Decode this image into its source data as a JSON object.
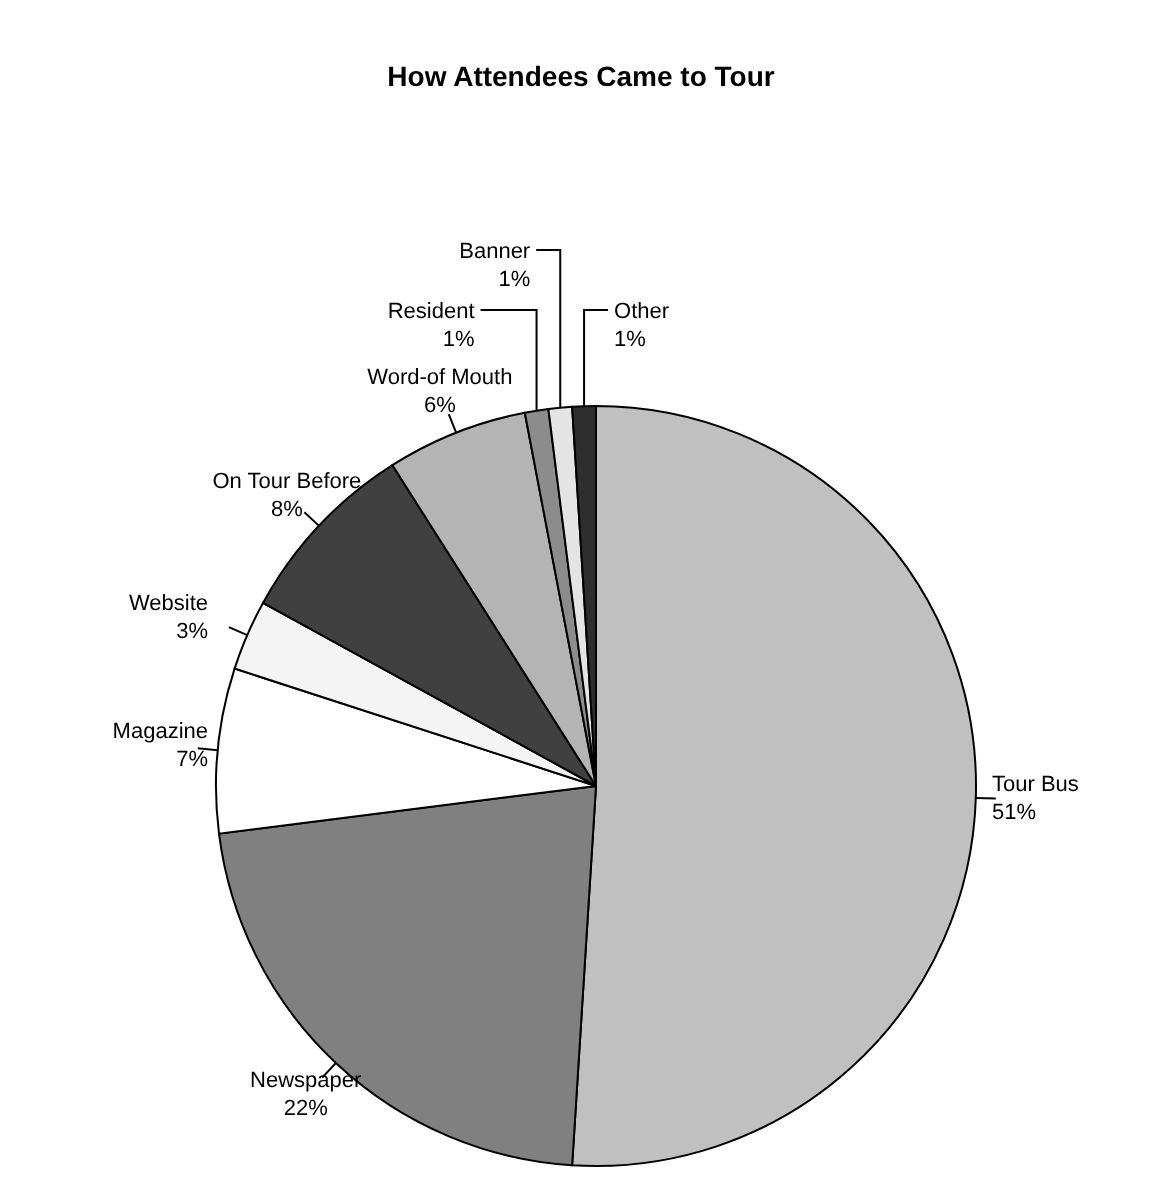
{
  "chart_data": {
    "type": "pie",
    "title": "How Attendees Came to Tour",
    "categories": [
      "Tour Bus",
      "Newspaper",
      "Magazine",
      "Website",
      "On Tour Before",
      "Word-of Mouth",
      "Resident",
      "Banner",
      "Other"
    ],
    "values": [
      51,
      22,
      7,
      3,
      8,
      6,
      1,
      1,
      1
    ],
    "colors": [
      "#c0c0c0",
      "#808080",
      "#ffffff",
      "#f4f4f4",
      "#404040",
      "#b4b4b4",
      "#8c8c8c",
      "#e4e4e4",
      "#2e2e2e"
    ],
    "value_labels": [
      "51%",
      "22%",
      "7%",
      "3%",
      "8%",
      "6%",
      "1%",
      "1%",
      "1%"
    ],
    "legend": false
  }
}
